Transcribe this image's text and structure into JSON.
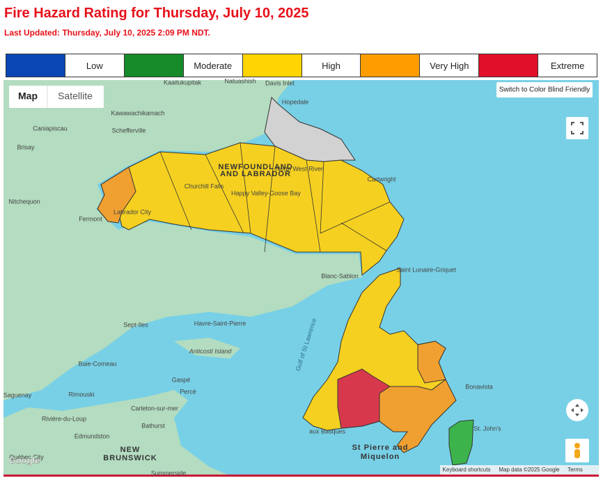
{
  "header": {
    "title": "Fire Hazard Rating for Thursday, July 10, 2025",
    "last_updated": "Last Updated: Thursday, July 10, 2025 2:09 PM NDT."
  },
  "legend": {
    "items": [
      {
        "label": "Low",
        "color": "#0a47b5"
      },
      {
        "label": "Moderate",
        "color": "#178a2a"
      },
      {
        "label": "High",
        "color": "#ffd400"
      },
      {
        "label": "Very High",
        "color": "#ff9d00"
      },
      {
        "label": "Extreme",
        "color": "#e0102a"
      }
    ]
  },
  "map": {
    "controls": {
      "map": "Map",
      "satellite": "Satellite",
      "color_blind": "Switch to Color Blind Friendly"
    },
    "labels": [
      "Kaaitukupitak",
      "Natuashish",
      "Davis Inlet",
      "Hopedale",
      "Kawawachikamach",
      "Caniapiscau",
      "Schefferville",
      "Brisay",
      "NEWFOUNDLAND",
      "AND LABRADOR",
      "Churchill Falls",
      "Happy Valley-Goose Bay",
      "North West River",
      "Cartwright",
      "Nitchequon",
      "Labrador City",
      "Fermont",
      "Blanc-Sablon",
      "Saint Lunaire-Griquet",
      "Sept-Iles",
      "Havre-Saint-Pierre",
      "Anticosti Island",
      "Gulf of St Lawrence",
      "Baie-Comeau",
      "Gaspé",
      "Percé",
      "Saguenay",
      "Rimouski",
      "Carleton-sur-mer",
      "Bathurst",
      "Rivière-du-Loup",
      "Edmundston",
      "NEW",
      "BRUNSWICK",
      "Québec City",
      "Bonavista",
      "St. John's",
      "St Pierre and",
      "Miquelon",
      "aux Basques",
      "Summerside"
    ],
    "logo": "Google",
    "footer": [
      "Keyboard shortcuts",
      "Map data ©2025 Google",
      "Terms"
    ]
  }
}
